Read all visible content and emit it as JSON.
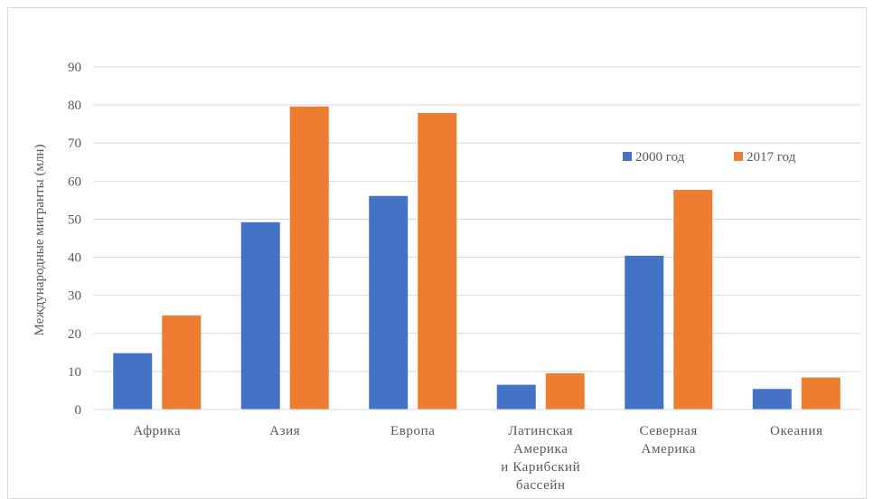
{
  "chart_data": {
    "type": "bar",
    "title": "",
    "xlabel": "",
    "ylabel": "Международные мигранты (млн)",
    "ylim": [
      0,
      90
    ],
    "yticks": [
      0,
      10,
      20,
      30,
      40,
      50,
      60,
      70,
      80,
      90
    ],
    "grid": true,
    "legend_position": "right",
    "categories": [
      [
        "Африка"
      ],
      [
        "Азия"
      ],
      [
        "Европа"
      ],
      [
        "Латинская",
        "Америка",
        "и Карибский",
        "бассейн"
      ],
      [
        "Северная",
        "Америка"
      ],
      [
        "Океания"
      ]
    ],
    "series": [
      {
        "name": "2000 год",
        "color": "#4472c4",
        "values": [
          14.8,
          49.2,
          56.1,
          6.5,
          40.4,
          5.4
        ]
      },
      {
        "name": "2017 год",
        "color": "#ed7d31",
        "values": [
          24.7,
          79.6,
          77.9,
          9.5,
          57.7,
          8.4
        ]
      }
    ]
  }
}
